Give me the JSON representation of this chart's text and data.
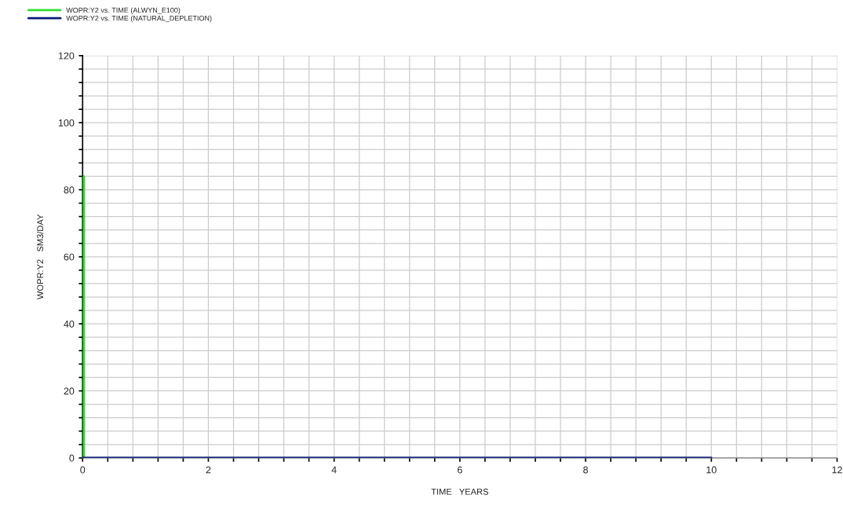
{
  "chart_data": {
    "type": "line",
    "xlabel": "TIME   YEARS",
    "ylabel": "WOPR:Y2   SM3/DAY",
    "series": [
      {
        "name": "WOPR:Y2 vs. TIME (ALWYN_E100)",
        "color": "#33dd33",
        "x": [
          0.02,
          0.02
        ],
        "values": [
          84,
          0
        ]
      },
      {
        "name": "WOPR:Y2 vs. TIME (NATURAL_DEPLETION)",
        "color": "#0a1a7a",
        "x": [
          0,
          10
        ],
        "values": [
          0,
          0
        ]
      }
    ],
    "xlim": [
      0,
      12
    ],
    "ylim": [
      0,
      120
    ],
    "xticks": [
      0,
      {
        "value": 0.4,
        "label": null
      },
      {
        "value": 0.8,
        "label": null
      },
      {
        "value": 1.2,
        "label": null
      },
      {
        "value": 1.6,
        "label": null
      },
      2,
      {
        "value": 2.4,
        "label": null
      },
      {
        "value": 2.8,
        "label": null
      },
      {
        "value": 3.2,
        "label": null
      },
      {
        "value": 3.6,
        "label": null
      },
      4,
      {
        "value": 4.4,
        "label": null
      },
      {
        "value": 4.8,
        "label": null
      },
      {
        "value": 5.2,
        "label": null
      },
      {
        "value": 5.6,
        "label": null
      },
      6,
      {
        "value": 6.4,
        "label": null
      },
      {
        "value": 6.8,
        "label": null
      },
      {
        "value": 7.2,
        "label": null
      },
      {
        "value": 7.6,
        "label": null
      },
      8,
      {
        "value": 8.4,
        "label": null
      },
      {
        "value": 8.8,
        "label": null
      },
      {
        "value": 9.2,
        "label": null
      },
      {
        "value": 9.6,
        "label": null
      },
      10,
      {
        "value": 10.4,
        "label": null
      },
      {
        "value": 10.8,
        "label": null
      },
      {
        "value": 11.2,
        "label": null
      },
      {
        "value": 11.6,
        "label": null
      },
      12
    ],
    "yticks": [
      0,
      {
        "value": 4,
        "label": null
      },
      {
        "value": 8,
        "label": null
      },
      {
        "value": 12,
        "label": null
      },
      {
        "value": 16,
        "label": null
      },
      20,
      {
        "value": 24,
        "label": null
      },
      {
        "value": 28,
        "label": null
      },
      {
        "value": 32,
        "label": null
      },
      {
        "value": 36,
        "label": null
      },
      40,
      {
        "value": 44,
        "label": null
      },
      {
        "value": 48,
        "label": null
      },
      {
        "value": 52,
        "label": null
      },
      {
        "value": 56,
        "label": null
      },
      60,
      {
        "value": 64,
        "label": null
      },
      {
        "value": 68,
        "label": null
      },
      {
        "value": 72,
        "label": null
      },
      {
        "value": 76,
        "label": null
      },
      80,
      {
        "value": 84,
        "label": null
      },
      {
        "value": 88,
        "label": null
      },
      {
        "value": 92,
        "label": null
      },
      {
        "value": 96,
        "label": null
      },
      100,
      {
        "value": 104,
        "label": null
      },
      {
        "value": 108,
        "label": null
      },
      {
        "value": 112,
        "label": null
      },
      {
        "value": 116,
        "label": null
      },
      120
    ],
    "grid": true,
    "legend": "top left",
    "marker": "none",
    "line_style": "solid"
  }
}
